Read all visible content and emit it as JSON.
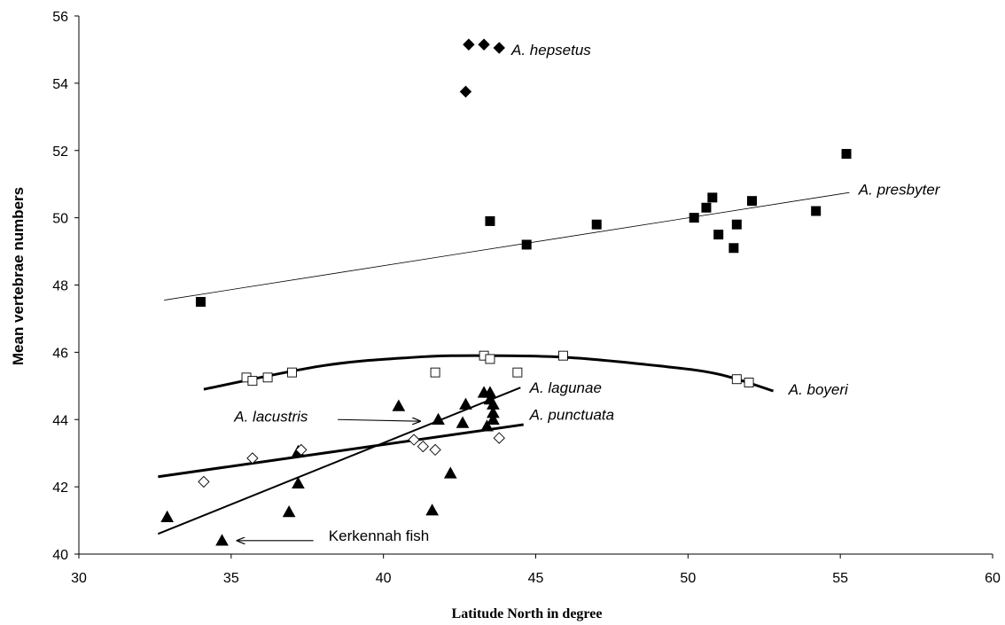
{
  "chart_data": {
    "type": "scatter",
    "title": "",
    "xlabel": "Latitude North in degree",
    "ylabel": "Mean vertebrae numbers",
    "xlim": [
      30,
      60
    ],
    "ylim": [
      40,
      56
    ],
    "xticks": [
      "30",
      "35",
      "40",
      "45",
      "50",
      "55",
      "60"
    ],
    "yticks": [
      "40",
      "42",
      "44",
      "46",
      "48",
      "50",
      "52",
      "54",
      "56"
    ],
    "grid": false,
    "series": [
      {
        "name": "A. hepsetus",
        "marker": "filled-diamond",
        "points": [
          [
            42.8,
            55.15
          ],
          [
            43.3,
            55.15
          ],
          [
            43.8,
            55.05
          ],
          [
            42.7,
            53.75
          ]
        ]
      },
      {
        "name": "A. presbyter",
        "marker": "filled-square",
        "points": [
          [
            34.0,
            47.5
          ],
          [
            43.5,
            49.9
          ],
          [
            44.7,
            49.2
          ],
          [
            47.0,
            49.8
          ],
          [
            50.2,
            50.0
          ],
          [
            50.6,
            50.3
          ],
          [
            50.8,
            50.6
          ],
          [
            51.0,
            49.5
          ],
          [
            51.5,
            49.1
          ],
          [
            51.6,
            49.8
          ],
          [
            52.1,
            50.5
          ],
          [
            54.2,
            50.2
          ],
          [
            55.2,
            51.9
          ]
        ]
      },
      {
        "name": "A. boyeri",
        "marker": "open-square",
        "points": [
          [
            35.5,
            45.25
          ],
          [
            35.7,
            45.15
          ],
          [
            36.2,
            45.25
          ],
          [
            37.0,
            45.4
          ],
          [
            41.7,
            45.4
          ],
          [
            43.3,
            45.9
          ],
          [
            43.5,
            45.8
          ],
          [
            44.4,
            45.4
          ],
          [
            45.9,
            45.9
          ],
          [
            51.6,
            45.2
          ],
          [
            52.0,
            45.1
          ]
        ]
      },
      {
        "name": "A. lagunae",
        "marker": "filled-triangle",
        "points": [
          [
            32.9,
            41.1
          ],
          [
            34.7,
            40.4
          ],
          [
            36.9,
            41.25
          ],
          [
            37.2,
            43.05
          ],
          [
            37.2,
            42.1
          ],
          [
            40.5,
            44.4
          ],
          [
            41.6,
            41.3
          ],
          [
            41.8,
            44.0
          ],
          [
            42.2,
            42.4
          ],
          [
            42.6,
            43.9
          ],
          [
            42.7,
            44.45
          ],
          [
            43.3,
            44.8
          ],
          [
            43.4,
            43.8
          ],
          [
            43.5,
            44.8
          ],
          [
            43.5,
            44.6
          ],
          [
            43.6,
            44.45
          ],
          [
            43.6,
            44.2
          ],
          [
            43.6,
            44.0
          ]
        ]
      },
      {
        "name": "A. punctuata",
        "marker": "open-diamond",
        "points": [
          [
            34.1,
            42.15
          ],
          [
            35.7,
            42.85
          ],
          [
            37.3,
            43.1
          ],
          [
            41.0,
            43.4
          ],
          [
            41.3,
            43.2
          ],
          [
            41.7,
            43.1
          ],
          [
            43.8,
            43.45
          ]
        ]
      }
    ],
    "trendlines": [
      {
        "series": "A. presbyter",
        "kind": "linear",
        "from": [
          32.8,
          47.55
        ],
        "to": [
          55.3,
          50.75
        ],
        "weight": "thin"
      },
      {
        "series": "A. boyeri",
        "kind": "curve",
        "points": [
          [
            34.1,
            44.9
          ],
          [
            38.0,
            45.6
          ],
          [
            41.0,
            45.85
          ],
          [
            43.0,
            45.9
          ],
          [
            46.0,
            45.85
          ],
          [
            49.0,
            45.6
          ],
          [
            51.0,
            45.35
          ],
          [
            52.8,
            44.85
          ]
        ],
        "weight": "bold"
      },
      {
        "series": "A. lagunae",
        "kind": "linear",
        "from": [
          32.6,
          40.6
        ],
        "to": [
          44.5,
          44.95
        ],
        "weight": "medium"
      },
      {
        "series": "A. punctuata",
        "kind": "linear",
        "from": [
          32.6,
          42.3
        ],
        "to": [
          44.6,
          43.85
        ],
        "weight": "bold"
      }
    ],
    "annotations": [
      {
        "text": "A. hepsetus",
        "x": 44.2,
        "y": 55.0,
        "style": "italic"
      },
      {
        "text": "A. presbyter",
        "x": 55.6,
        "y": 50.85,
        "style": "italic"
      },
      {
        "text": "A. boyeri",
        "x": 53.3,
        "y": 44.9,
        "style": "italic"
      },
      {
        "text": "A. lagunae",
        "x": 44.8,
        "y": 44.95,
        "style": "italic"
      },
      {
        "text": "A. punctuata",
        "x": 44.8,
        "y": 44.15,
        "style": "italic"
      },
      {
        "text": "A. lacustris",
        "x": 35.1,
        "y": 44.1,
        "style": "italic",
        "arrow_from": [
          38.5,
          44.0
        ],
        "arrow_to": [
          41.2,
          43.95
        ]
      },
      {
        "text": "Kerkennah fish",
        "x": 38.2,
        "y": 40.55,
        "style": "normal",
        "arrow_from": [
          37.7,
          40.4
        ],
        "arrow_to": [
          35.2,
          40.4
        ]
      }
    ]
  }
}
